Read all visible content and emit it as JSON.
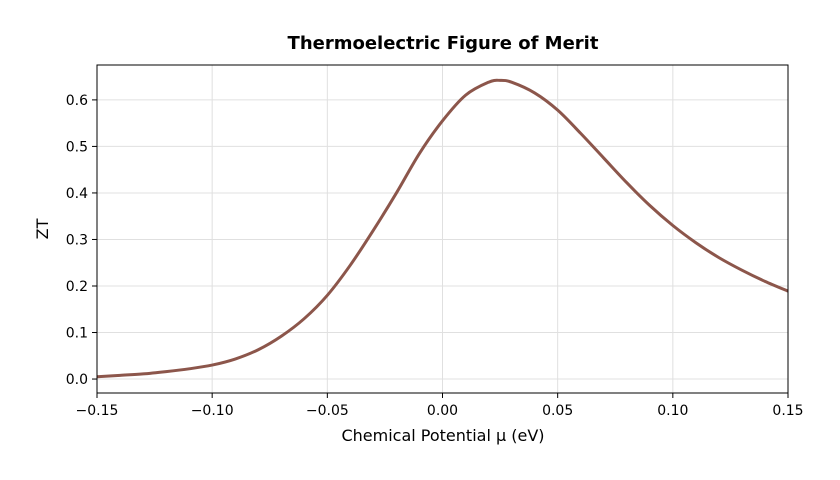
{
  "chart_data": {
    "type": "line",
    "title": "Thermoelectric Figure of Merit",
    "xlabel": "Chemical Potential μ (eV)",
    "ylabel": "ZT",
    "xlim": [
      -0.15,
      0.15
    ],
    "ylim": [
      -0.03,
      0.675
    ],
    "grid": true,
    "xticks": [
      -0.15,
      -0.1,
      -0.05,
      0.0,
      0.05,
      0.1,
      0.15
    ],
    "xtick_labels": [
      "−0.15",
      "−0.10",
      "−0.05",
      "0.00",
      "0.05",
      "0.10",
      "0.15"
    ],
    "yticks": [
      0.0,
      0.1,
      0.2,
      0.3,
      0.4,
      0.5,
      0.6
    ],
    "ytick_labels": [
      "0.0",
      "0.1",
      "0.2",
      "0.3",
      "0.4",
      "0.5",
      "0.6"
    ],
    "line_color": "#8c564b",
    "series": [
      {
        "x": [
          -0.15,
          -0.14,
          -0.13,
          -0.12,
          -0.11,
          -0.1,
          -0.09,
          -0.08,
          -0.07,
          -0.06,
          -0.05,
          -0.04,
          -0.03,
          -0.02,
          -0.01,
          0.0,
          0.01,
          0.02,
          0.025,
          0.03,
          0.04,
          0.05,
          0.06,
          0.07,
          0.08,
          0.09,
          0.1,
          0.11,
          0.12,
          0.13,
          0.14,
          0.15
        ],
        "y": [
          0.005,
          0.008,
          0.011,
          0.016,
          0.022,
          0.03,
          0.043,
          0.063,
          0.092,
          0.13,
          0.18,
          0.245,
          0.32,
          0.4,
          0.485,
          0.555,
          0.61,
          0.638,
          0.642,
          0.638,
          0.615,
          0.578,
          0.528,
          0.475,
          0.422,
          0.373,
          0.33,
          0.293,
          0.261,
          0.234,
          0.21,
          0.189
        ]
      }
    ]
  }
}
